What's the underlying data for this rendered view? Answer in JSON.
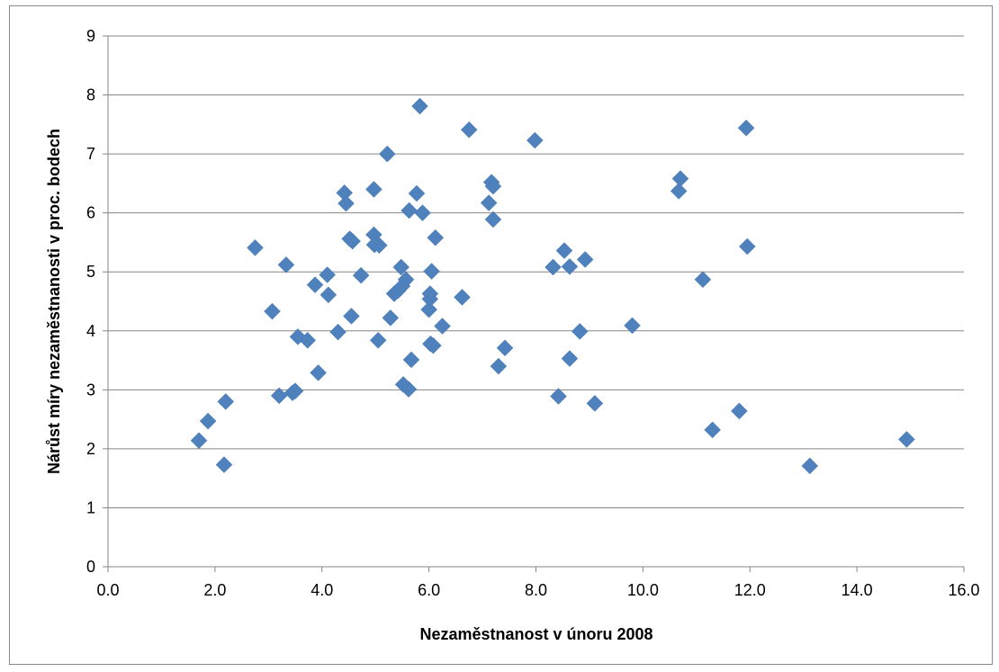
{
  "chart_data": {
    "type": "scatter",
    "title": "",
    "xlabel": "Nezaměstnanost v únoru 2008",
    "ylabel": "Nárůst míry nezaměstnanosti v proc. bodech",
    "xlim": [
      0,
      16
    ],
    "ylim": [
      0,
      9
    ],
    "x_ticks": [
      "0.0",
      "2.0",
      "4.0",
      "6.0",
      "8.0",
      "10.0",
      "12.0",
      "14.0",
      "16.0"
    ],
    "y_ticks": [
      "0",
      "1",
      "2",
      "3",
      "4",
      "5",
      "6",
      "7",
      "8",
      "9"
    ],
    "grid": "horizontal",
    "legend": "none",
    "marker": "diamond",
    "marker_color": "#4F81BD",
    "series": [
      {
        "points": [
          [
            1.7,
            2.14
          ],
          [
            1.87,
            2.47
          ],
          [
            2.2,
            2.8
          ],
          [
            2.17,
            1.73
          ],
          [
            2.75,
            5.41
          ],
          [
            3.07,
            4.33
          ],
          [
            3.2,
            2.9
          ],
          [
            3.33,
            5.12
          ],
          [
            3.45,
            2.95
          ],
          [
            3.5,
            2.98
          ],
          [
            3.55,
            3.9
          ],
          [
            3.73,
            3.84
          ],
          [
            3.87,
            4.78
          ],
          [
            3.93,
            3.29
          ],
          [
            4.1,
            4.95
          ],
          [
            4.12,
            4.61
          ],
          [
            4.3,
            3.98
          ],
          [
            4.42,
            6.34
          ],
          [
            4.45,
            6.16
          ],
          [
            4.52,
            5.56
          ],
          [
            4.57,
            5.52
          ],
          [
            4.55,
            4.25
          ],
          [
            4.73,
            4.94
          ],
          [
            4.97,
            6.4
          ],
          [
            4.97,
            5.63
          ],
          [
            4.98,
            5.46
          ],
          [
            5.07,
            5.45
          ],
          [
            5.05,
            3.84
          ],
          [
            5.22,
            7.0
          ],
          [
            5.28,
            4.22
          ],
          [
            5.35,
            4.63
          ],
          [
            5.42,
            4.68
          ],
          [
            5.48,
            5.08
          ],
          [
            5.5,
            4.76
          ],
          [
            5.52,
            3.09
          ],
          [
            5.57,
            4.87
          ],
          [
            5.62,
            3.01
          ],
          [
            5.63,
            6.04
          ],
          [
            5.67,
            3.51
          ],
          [
            5.77,
            6.33
          ],
          [
            5.83,
            7.81
          ],
          [
            5.88,
            6.0
          ],
          [
            6.0,
            4.36
          ],
          [
            6.02,
            4.54
          ],
          [
            6.02,
            4.63
          ],
          [
            6.05,
            5.01
          ],
          [
            6.03,
            3.78
          ],
          [
            6.08,
            3.75
          ],
          [
            6.12,
            5.58
          ],
          [
            6.25,
            4.08
          ],
          [
            6.62,
            4.57
          ],
          [
            6.75,
            7.41
          ],
          [
            7.12,
            6.17
          ],
          [
            7.17,
            6.52
          ],
          [
            7.2,
            6.45
          ],
          [
            7.2,
            5.89
          ],
          [
            7.3,
            3.4
          ],
          [
            7.42,
            3.71
          ],
          [
            7.98,
            7.23
          ],
          [
            8.32,
            5.08
          ],
          [
            8.42,
            2.89
          ],
          [
            8.53,
            5.36
          ],
          [
            8.63,
            3.53
          ],
          [
            8.63,
            5.09
          ],
          [
            8.82,
            3.99
          ],
          [
            8.92,
            5.21
          ],
          [
            9.1,
            2.77
          ],
          [
            9.8,
            4.09
          ],
          [
            10.67,
            6.37
          ],
          [
            10.7,
            6.58
          ],
          [
            11.12,
            4.87
          ],
          [
            11.3,
            2.32
          ],
          [
            11.8,
            2.64
          ],
          [
            11.93,
            7.44
          ],
          [
            11.95,
            5.43
          ],
          [
            13.12,
            1.71
          ],
          [
            14.93,
            2.16
          ]
        ]
      }
    ]
  }
}
